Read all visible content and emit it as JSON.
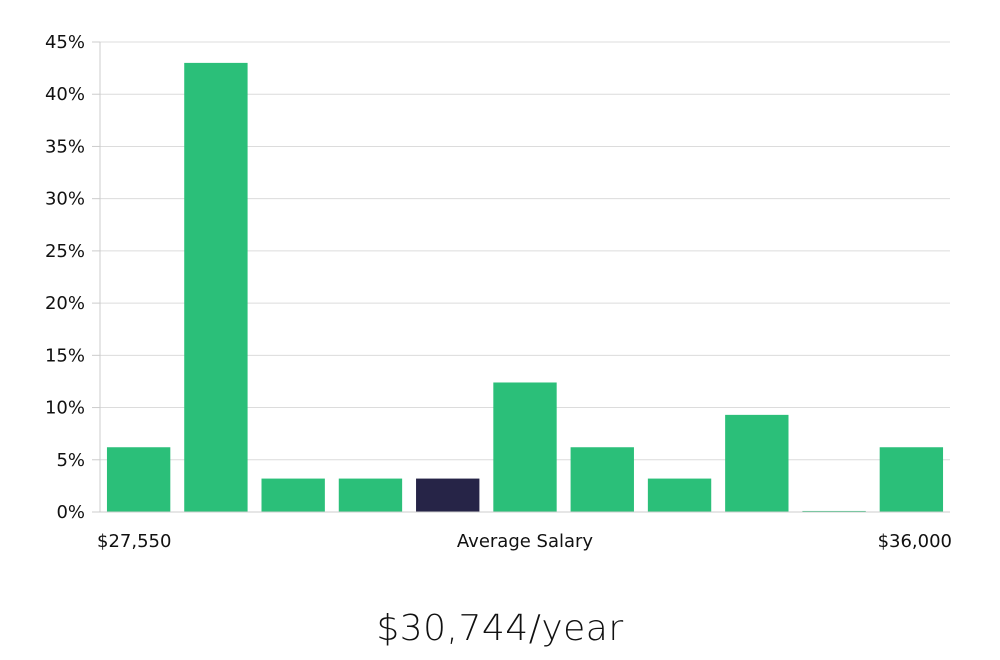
{
  "chart_data": {
    "type": "bar",
    "title": "",
    "xlabel": "Average Salary",
    "ylabel": "",
    "x_min_label": "$27,550",
    "x_max_label": "$36,000",
    "ylim": [
      0,
      45
    ],
    "y_ticks": [
      0,
      5,
      10,
      15,
      20,
      25,
      30,
      35,
      40,
      45
    ],
    "y_tick_format": "percent",
    "values": [
      6.2,
      43,
      3.2,
      3.2,
      3.2,
      12.4,
      6.2,
      3.2,
      9.3,
      0.1,
      6.2
    ],
    "highlight_index": 4,
    "grid": true,
    "colors": {
      "bar": "#2bbf79",
      "highlight": "#262447",
      "grid": "#dcdcdc",
      "axis": "#cccccc"
    }
  },
  "headline": "$30,744/year"
}
